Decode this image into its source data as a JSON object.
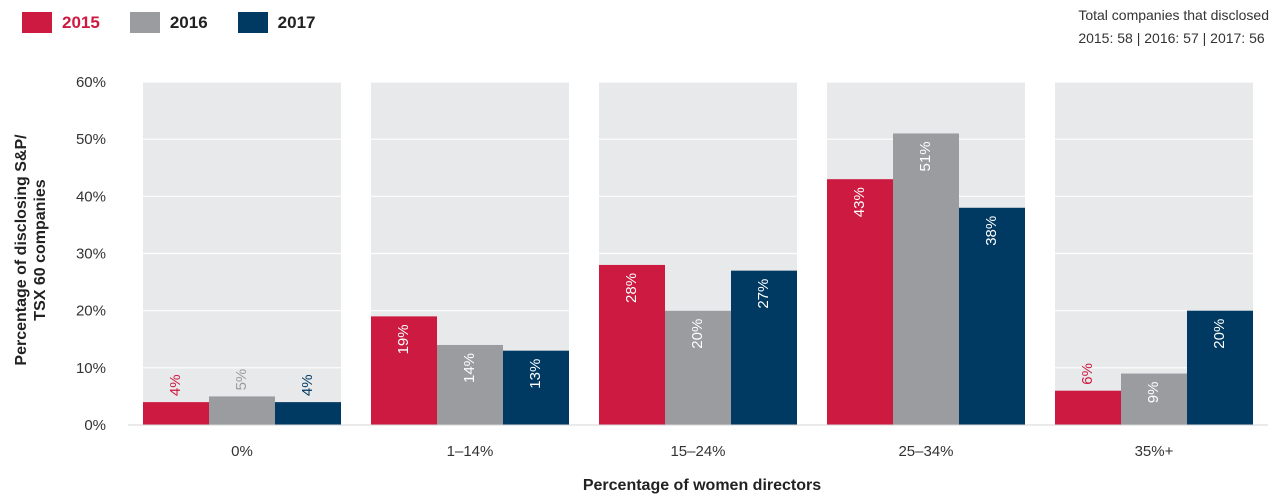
{
  "legend": [
    {
      "label": "2015",
      "color": "#cc1a40",
      "text_color": "#cc1a40"
    },
    {
      "label": "2016",
      "color": "#9a9c9f",
      "text_color": "#222222"
    },
    {
      "label": "2017",
      "color": "#003a63",
      "text_color": "#222222"
    }
  ],
  "note": {
    "line1": "Total companies that disclosed",
    "line2": "2015: 58 | 2016: 57 | 2017: 56"
  },
  "chart_data": {
    "type": "bar",
    "categories": [
      "0%",
      "1–14%",
      "15–24%",
      "25–34%",
      "35%+"
    ],
    "series": [
      {
        "name": "2015",
        "values": [
          4,
          19,
          28,
          43,
          6
        ],
        "color": "#cc1a40"
      },
      {
        "name": "2016",
        "values": [
          5,
          14,
          20,
          51,
          9
        ],
        "color": "#9a9c9f"
      },
      {
        "name": "2017",
        "values": [
          4,
          13,
          27,
          38,
          20
        ],
        "color": "#003a63"
      }
    ],
    "value_labels": [
      [
        "4%",
        "19%",
        "28%",
        "43%",
        "6%"
      ],
      [
        "5%",
        "14%",
        "20%",
        "51%",
        "9%"
      ],
      [
        "4%",
        "13%",
        "27%",
        "38%",
        "20%"
      ]
    ],
    "xlabel": "Percentage of women directors",
    "ylabel_lines": [
      "Percentage of disclosing S&P/",
      "TSX 60 companies"
    ],
    "ylim": [
      0,
      60
    ],
    "yticks": [
      0,
      10,
      20,
      30,
      40,
      50,
      60
    ],
    "ytick_labels": [
      "0%",
      "10%",
      "20%",
      "30%",
      "40%",
      "50%",
      "60%"
    ],
    "grid": true,
    "legend_position": "top-left",
    "category_background_color": "#e8e9eb"
  }
}
